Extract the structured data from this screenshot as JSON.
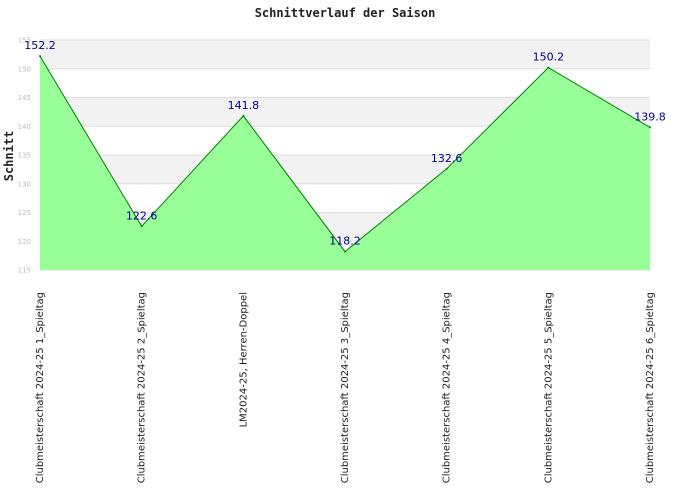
{
  "chart_data": {
    "type": "area",
    "title": "Schnittverlauf der Saison",
    "xlabel": "",
    "ylabel": "Schnitt",
    "ylim": [
      115,
      155
    ],
    "yticks": [
      115,
      120,
      125,
      130,
      135,
      140,
      145,
      150,
      155
    ],
    "grid": true,
    "categories": [
      "Clubmeisterschaft 2024-25   1_Spieltag",
      "Clubmeisterschaft 2024-25   2_Spieltag",
      "LM2024-25, Herren-Doppel",
      "Clubmeisterschaft 2024-25   3_Spieltag",
      "Clubmeisterschaft 2024-25   4_Spieltag",
      "Clubmeisterschaft 2024-25   5_Spieltag",
      "Clubmeisterschaft 2024-25   6_Spieltag"
    ],
    "values": [
      152.2,
      122.6,
      141.8,
      118.2,
      132.6,
      150.2,
      139.8
    ],
    "data_labels": [
      "152.2",
      "122.6",
      "141.8",
      "118.2",
      "132.6",
      "150.2",
      "139.8"
    ],
    "colors": {
      "fill": "#99ff99",
      "line": "#008000",
      "label": "#00008b",
      "band": "#f2f2f2",
      "grid": "#dddddd"
    }
  }
}
